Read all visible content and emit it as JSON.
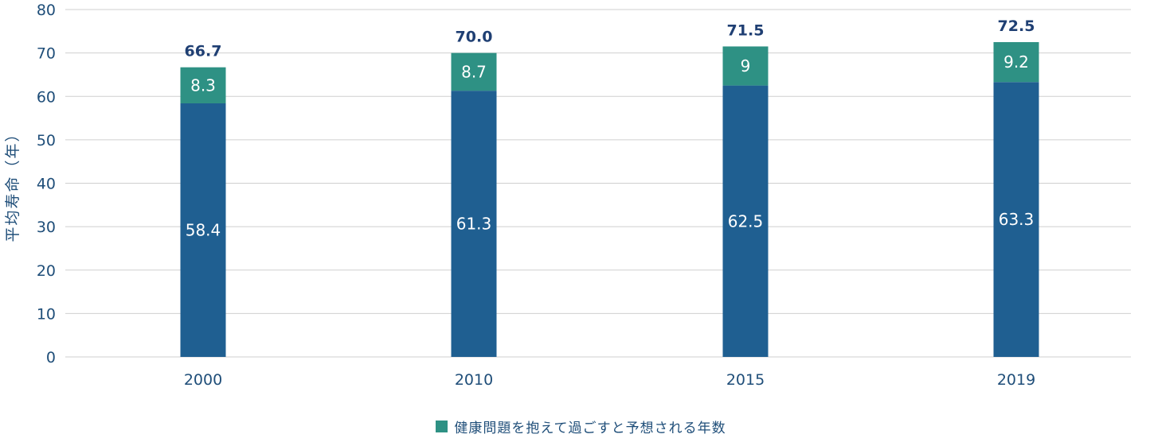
{
  "chart_data": {
    "type": "bar",
    "stacked": true,
    "categories": [
      "2000",
      "2010",
      "2015",
      "2019"
    ],
    "series": [
      {
        "name": "",
        "color": "#1f5f91",
        "values": [
          58.4,
          61.3,
          62.5,
          63.3
        ],
        "labels": [
          "58.4",
          "61.3",
          "62.5",
          "63.3"
        ]
      },
      {
        "name": "健康問題を抱えて過ごすと予想される年数",
        "color": "#2e9184",
        "values": [
          8.3,
          8.7,
          9,
          9.2
        ],
        "labels": [
          "8.3",
          "8.7",
          "9",
          "9.2"
        ]
      }
    ],
    "totals": [
      "66.7",
      "70.0",
      "71.5",
      "72.5"
    ],
    "ylabel": "平均寿命（年）",
    "ylim": [
      0,
      80
    ],
    "yticks": [
      0,
      10,
      20,
      30,
      40,
      50,
      60,
      70,
      80
    ],
    "grid": true,
    "legend_position": "bottom"
  }
}
